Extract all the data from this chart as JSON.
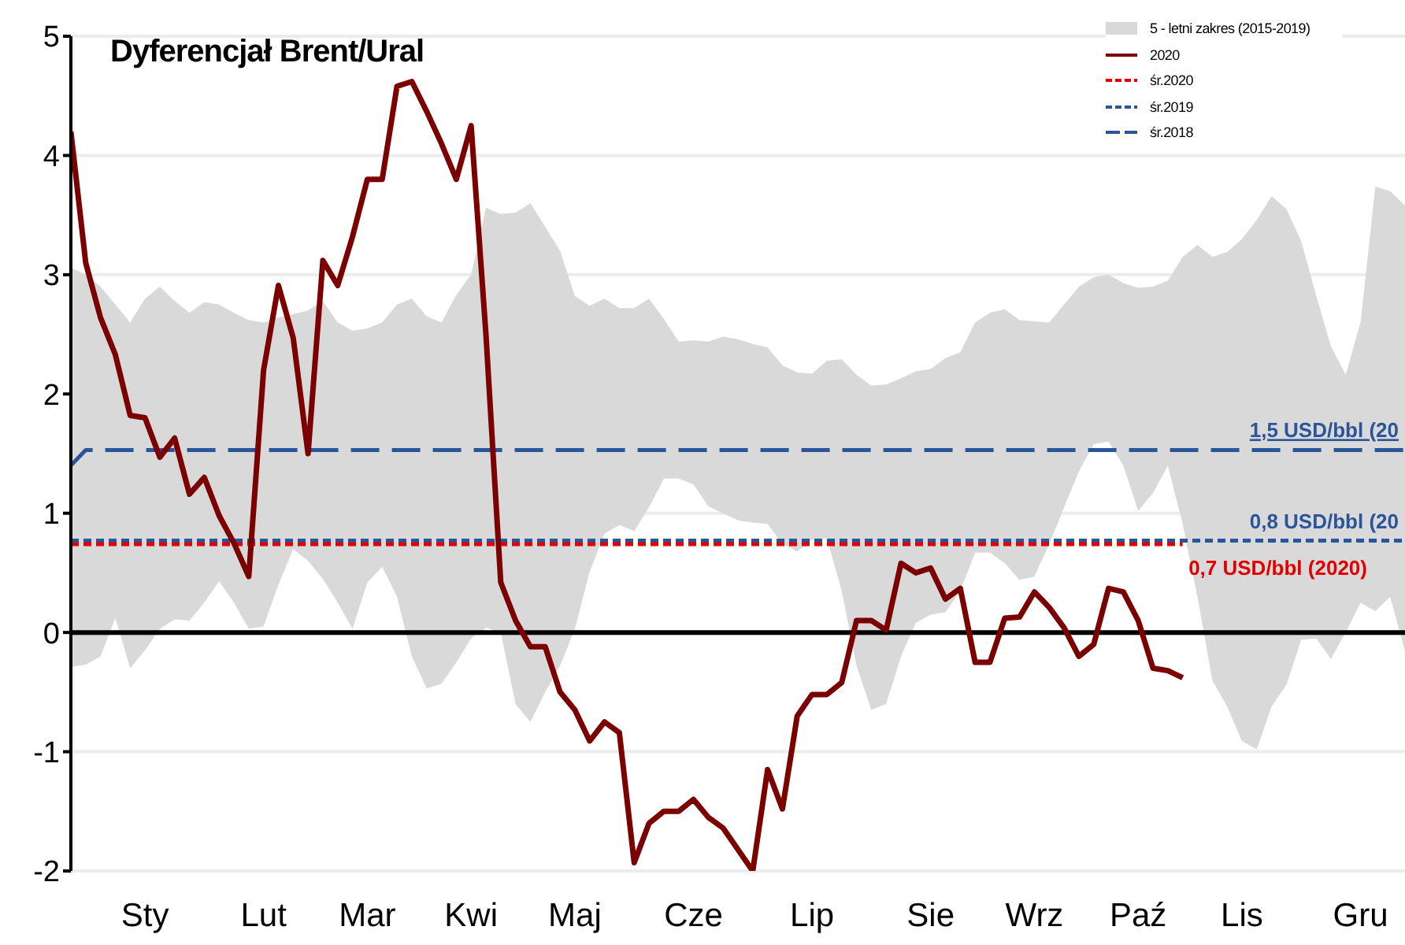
{
  "chart_data": {
    "type": "line",
    "title": "Dyferencjał Brent/Ural",
    "categories": [
      null,
      null,
      null,
      null,
      null,
      "Sty",
      null,
      null,
      null,
      null,
      null,
      null,
      null,
      "Lut",
      null,
      null,
      null,
      null,
      null,
      null,
      "Mar",
      null,
      null,
      null,
      null,
      null,
      null,
      "Kwi",
      null,
      null,
      null,
      null,
      null,
      null,
      "Maj",
      null,
      null,
      null,
      null,
      null,
      null,
      null,
      "Cze",
      null,
      null,
      null,
      null,
      null,
      null,
      null,
      "Lip",
      null,
      null,
      null,
      null,
      null,
      null,
      null,
      "Sie",
      null,
      null,
      null,
      null,
      null,
      null,
      "Wrz",
      null,
      null,
      null,
      null,
      null,
      null,
      "Paź",
      null,
      null,
      null,
      null,
      null,
      null,
      "Lis",
      null,
      null,
      null,
      null,
      null,
      null,
      null,
      "Gru",
      null,
      null,
      null
    ],
    "ylim": [
      -2,
      5
    ],
    "yticks": [
      -2,
      -1,
      0,
      1,
      2,
      3,
      4,
      5
    ],
    "grid": "y",
    "legend": "top right",
    "ref_lines": [
      {
        "axis": "y",
        "value": 0,
        "color": "#000000",
        "line_style": "solid"
      }
    ],
    "annotations": [
      {
        "text": "1,5 USD/bbl (20",
        "y": 1.53
      },
      {
        "text": "0,8 USD/bbl (20",
        "y": 0.77
      },
      {
        "text": "0,7 USD/bbl (2020)",
        "y": 0.74
      }
    ],
    "series": [
      {
        "name": "5 - letni zakres (2015-2019)",
        "color": "#d9d9d9",
        "values": [
          null,
          null,
          null,
          null,
          null,
          null,
          null,
          null,
          null,
          null,
          null,
          null,
          null,
          null,
          null,
          null,
          null,
          null,
          null,
          null,
          null,
          null,
          null,
          null,
          null,
          null,
          null,
          null,
          null,
          null,
          null,
          null,
          null,
          null,
          null,
          null,
          null,
          null,
          null,
          null,
          null,
          null,
          null,
          null,
          null,
          null,
          null,
          null,
          null,
          null,
          null,
          null,
          null,
          null,
          null,
          null,
          null,
          null,
          null,
          null,
          null,
          null,
          null,
          null,
          null,
          null,
          null,
          null,
          null,
          null,
          null,
          null,
          null,
          null,
          null,
          null,
          null,
          null,
          null,
          null,
          null,
          null,
          null,
          null,
          null,
          null,
          null,
          null,
          null,
          null,
          null
        ],
        "upper": [
          3.06,
          3.0,
          2.9,
          2.75,
          2.6,
          2.8,
          2.9,
          2.78,
          2.68,
          2.77,
          2.75,
          2.68,
          2.62,
          2.6,
          2.64,
          2.67,
          2.7,
          2.78,
          2.6,
          2.53,
          2.55,
          2.6,
          2.75,
          2.8,
          2.65,
          2.6,
          2.83,
          3.0,
          3.56,
          3.51,
          3.52,
          3.6,
          3.4,
          3.2,
          2.82,
          2.74,
          2.8,
          2.72,
          2.72,
          2.8,
          2.63,
          2.44,
          2.45,
          2.44,
          2.48,
          2.46,
          2.42,
          2.39,
          2.24,
          2.18,
          2.17,
          2.28,
          2.29,
          2.16,
          2.07,
          2.08,
          2.13,
          2.19,
          2.21,
          2.3,
          2.35,
          2.6,
          2.68,
          2.71,
          2.62,
          2.61,
          2.6,
          2.75,
          2.9,
          2.98,
          3.0,
          2.93,
          2.89,
          2.9,
          2.95,
          3.15,
          3.25,
          3.15,
          3.19,
          3.3,
          3.46,
          3.66,
          3.55,
          3.28,
          2.83,
          2.4,
          2.16,
          2.6,
          3.74,
          3.7,
          3.58
        ],
        "lower": [
          -0.29,
          -0.27,
          -0.2,
          0.12,
          -0.3,
          -0.15,
          0.03,
          0.11,
          0.1,
          0.25,
          0.43,
          0.25,
          0.03,
          0.05,
          0.4,
          0.7,
          0.6,
          0.45,
          0.25,
          0.03,
          0.42,
          0.55,
          0.3,
          -0.2,
          -0.47,
          -0.43,
          -0.25,
          -0.05,
          0.04,
          0.0,
          -0.6,
          -0.75,
          -0.5,
          -0.28,
          0.03,
          0.51,
          0.83,
          0.9,
          0.85,
          1.05,
          1.29,
          1.29,
          1.24,
          1.06,
          1.0,
          0.94,
          0.92,
          0.91,
          0.74,
          0.68,
          0.78,
          0.79,
          0.35,
          -0.28,
          -0.65,
          -0.6,
          -0.2,
          0.08,
          0.15,
          0.17,
          0.35,
          0.67,
          0.67,
          0.58,
          0.44,
          0.47,
          0.74,
          1.05,
          1.35,
          1.58,
          1.6,
          1.4,
          1.02,
          1.17,
          1.4,
          0.91,
          0.3,
          -0.4,
          -0.62,
          -0.91,
          -0.98,
          -0.62,
          -0.44,
          -0.06,
          -0.05,
          -0.22,
          0.0,
          0.25,
          0.18,
          0.3,
          -0.16
        ]
      },
      {
        "name": "2020",
        "color": "#7b0000",
        "line_style": "solid",
        "values": [
          4.2,
          3.1,
          2.64,
          2.33,
          1.82,
          1.8,
          1.47,
          1.63,
          1.16,
          1.3,
          0.98,
          0.75,
          0.47,
          2.2,
          2.91,
          2.47,
          1.5,
          3.12,
          2.91,
          3.32,
          3.8,
          3.8,
          4.58,
          4.62,
          4.37,
          4.1,
          3.8,
          4.25,
          2.5,
          0.42,
          0.1,
          -0.12,
          -0.12,
          -0.5,
          -0.65,
          -0.91,
          -0.75,
          -0.84,
          -1.93,
          -1.6,
          -1.5,
          -1.5,
          -1.4,
          -1.55,
          -1.64,
          -1.82,
          -2.0,
          -1.15,
          -1.48,
          -0.7,
          -0.52,
          -0.52,
          -0.42,
          0.1,
          0.1,
          0.02,
          0.58,
          0.5,
          0.54,
          0.28,
          0.37,
          -0.25,
          -0.25,
          0.12,
          0.13,
          0.34,
          0.21,
          0.04,
          -0.2,
          -0.1,
          0.37,
          0.34,
          0.1,
          -0.3,
          -0.32,
          -0.38,
          null,
          null,
          null,
          null,
          null,
          null,
          null,
          null,
          null,
          null,
          null,
          null,
          null,
          null,
          null
        ]
      },
      {
        "name": "śr.2020",
        "color": "#e00000",
        "line_style": "dotted",
        "values": [
          0.74,
          0.74,
          0.74,
          0.74,
          0.74,
          0.74,
          0.74,
          0.74,
          0.74,
          0.74,
          0.74,
          0.74,
          0.74,
          0.74,
          0.74,
          0.74,
          0.74,
          0.74,
          0.74,
          0.74,
          0.74,
          0.74,
          0.74,
          0.74,
          0.74,
          0.74,
          0.74,
          0.74,
          0.74,
          0.74,
          0.74,
          0.74,
          0.74,
          0.74,
          0.74,
          0.74,
          0.74,
          0.74,
          0.74,
          0.74,
          0.74,
          0.74,
          0.74,
          0.74,
          0.74,
          0.74,
          0.74,
          0.74,
          0.74,
          0.74,
          0.74,
          0.74,
          0.74,
          0.74,
          0.74,
          0.74,
          0.74,
          0.74,
          0.74,
          0.74,
          0.74,
          0.74,
          0.74,
          0.74,
          0.74,
          0.74,
          0.74,
          0.74,
          0.74,
          0.74,
          0.74,
          0.74,
          0.74,
          0.74,
          0.74,
          0.74,
          null,
          null,
          null,
          null,
          null,
          null,
          null,
          null,
          null,
          null,
          null,
          null,
          null,
          null,
          null
        ]
      },
      {
        "name": "śr.2019",
        "color": "#2a5599",
        "line_style": "dotted",
        "values": [
          0.77,
          0.77,
          0.77,
          0.77,
          0.77,
          0.77,
          0.77,
          0.77,
          0.77,
          0.77,
          0.77,
          0.77,
          0.77,
          0.77,
          0.77,
          0.77,
          0.77,
          0.77,
          0.77,
          0.77,
          0.77,
          0.77,
          0.77,
          0.77,
          0.77,
          0.77,
          0.77,
          0.77,
          0.77,
          0.77,
          0.77,
          0.77,
          0.77,
          0.77,
          0.77,
          0.77,
          0.77,
          0.77,
          0.77,
          0.77,
          0.77,
          0.77,
          0.77,
          0.77,
          0.77,
          0.77,
          0.77,
          0.77,
          0.77,
          0.77,
          0.77,
          0.77,
          0.77,
          0.77,
          0.77,
          0.77,
          0.77,
          0.77,
          0.77,
          0.77,
          0.77,
          0.77,
          0.77,
          0.77,
          0.77,
          0.77,
          0.77,
          0.77,
          0.77,
          0.77,
          0.77,
          0.77,
          0.77,
          0.77,
          0.77,
          0.77,
          0.77,
          0.77,
          0.77,
          0.77,
          0.77,
          0.77,
          0.77,
          0.77,
          0.77,
          0.77,
          0.77,
          0.77,
          0.77,
          0.77,
          0.77
        ]
      },
      {
        "name": "śr.2018",
        "color": "#2a5599",
        "line_style": "dashed",
        "values": [
          1.4,
          1.53,
          1.53,
          1.53,
          1.53,
          1.53,
          1.53,
          1.53,
          1.53,
          1.53,
          1.53,
          1.53,
          1.53,
          1.53,
          1.53,
          1.53,
          1.53,
          1.53,
          1.53,
          1.53,
          1.53,
          1.53,
          1.53,
          1.53,
          1.53,
          1.53,
          1.53,
          1.53,
          1.53,
          1.53,
          1.53,
          1.53,
          1.53,
          1.53,
          1.53,
          1.53,
          1.53,
          1.53,
          1.53,
          1.53,
          1.53,
          1.53,
          1.53,
          1.53,
          1.53,
          1.53,
          1.53,
          1.53,
          1.53,
          1.53,
          1.53,
          1.53,
          1.53,
          1.53,
          1.53,
          1.53,
          1.53,
          1.53,
          1.53,
          1.53,
          1.53,
          1.53,
          1.53,
          1.53,
          1.53,
          1.53,
          1.53,
          1.53,
          1.53,
          1.53,
          1.53,
          1.53,
          1.53,
          1.53,
          1.53,
          1.53,
          1.53,
          1.53,
          1.53,
          1.53,
          1.53,
          1.53,
          1.53,
          1.53,
          1.53,
          1.53,
          1.53,
          1.53,
          1.53,
          1.53,
          1.53
        ]
      }
    ]
  }
}
